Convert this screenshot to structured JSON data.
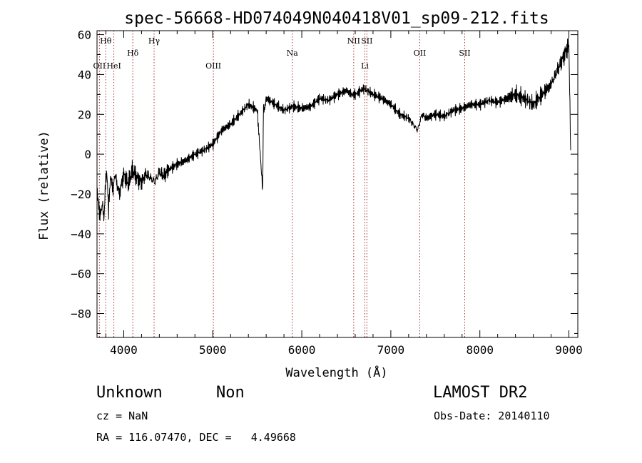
{
  "chart_data": {
    "type": "line",
    "title": "spec-56668-HD074049N040418V01_sp09-212.fits",
    "xlabel": "Wavelength (Å)",
    "ylabel": "Flux (relative)",
    "xlim": [
      3700,
      9100
    ],
    "ylim": [
      -92,
      62
    ],
    "x_ticks": [
      4000,
      5000,
      6000,
      7000,
      8000,
      9000
    ],
    "y_ticks": [
      -80,
      -60,
      -40,
      -20,
      0,
      20,
      40,
      60
    ],
    "series": [
      {
        "color": "#000000",
        "x": [
          3700,
          3730,
          3760,
          3780,
          3795,
          3810,
          3830,
          3850,
          3880,
          3900,
          3950,
          4000,
          4050,
          4100,
          4150,
          4200,
          4250,
          4300,
          4350,
          4400,
          4450,
          4500,
          4600,
          4700,
          4800,
          4900,
          5000,
          5100,
          5200,
          5300,
          5400,
          5500,
          5560,
          5570,
          5580,
          5600,
          5700,
          5800,
          5900,
          6000,
          6100,
          6200,
          6300,
          6400,
          6500,
          6560,
          6600,
          6700,
          6800,
          6900,
          7000,
          7100,
          7200,
          7250,
          7300,
          7350,
          7400,
          7500,
          7600,
          7700,
          7800,
          7900,
          8000,
          8100,
          8200,
          8300,
          8400,
          8500,
          8600,
          8700,
          8800,
          8850,
          8900,
          8950,
          9000,
          9020
        ],
        "y": [
          -20,
          -30,
          -25,
          -33,
          -15,
          -8,
          -28,
          -12,
          -18,
          -10,
          -20,
          -10,
          -15,
          -8,
          -12,
          -14,
          -10,
          -12,
          -14,
          -9,
          -11,
          -8,
          -5,
          -3,
          0,
          2,
          5,
          12,
          15,
          20,
          25,
          22,
          -18,
          25,
          22,
          28,
          25,
          22,
          24,
          23,
          24,
          28,
          27,
          30,
          32,
          30,
          30,
          33,
          30,
          28,
          25,
          20,
          18,
          15,
          12,
          20,
          18,
          20,
          19,
          22,
          23,
          25,
          25,
          27,
          26,
          28,
          30,
          28,
          25,
          30,
          35,
          40,
          45,
          50,
          55,
          2
        ]
      }
    ],
    "line_markers": [
      {
        "label": "Hθ",
        "x": 3798,
        "row": "top"
      },
      {
        "label": "OII",
        "x": 3727,
        "row": "low"
      },
      {
        "label": "HeI",
        "x": 3889,
        "row": "low"
      },
      {
        "label": "Hδ",
        "x": 4102,
        "row": "mid"
      },
      {
        "label": "Hγ",
        "x": 4341,
        "row": "top"
      },
      {
        "label": "OIII",
        "x": 5007,
        "row": "low"
      },
      {
        "label": "Na",
        "x": 5893,
        "row": "mid"
      },
      {
        "label": "NII",
        "x": 6583,
        "row": "top"
      },
      {
        "label": "Li",
        "x": 6708,
        "row": "low"
      },
      {
        "label": "SII",
        "x": 6731,
        "row": "top"
      },
      {
        "label": "OII",
        "x": 7325,
        "row": "mid"
      },
      {
        "label": "SII",
        "x": 7830,
        "row": "mid"
      }
    ],
    "grid": false,
    "legend": "none"
  },
  "info": {
    "class_text": "Unknown",
    "subclass_text": "Non",
    "survey_text": "LAMOST DR2",
    "cz_text": "cz = NaN",
    "obs_date_text": "Obs-Date: 20140110",
    "coords_text": "RA = 116.07470, DEC =   4.49668"
  }
}
